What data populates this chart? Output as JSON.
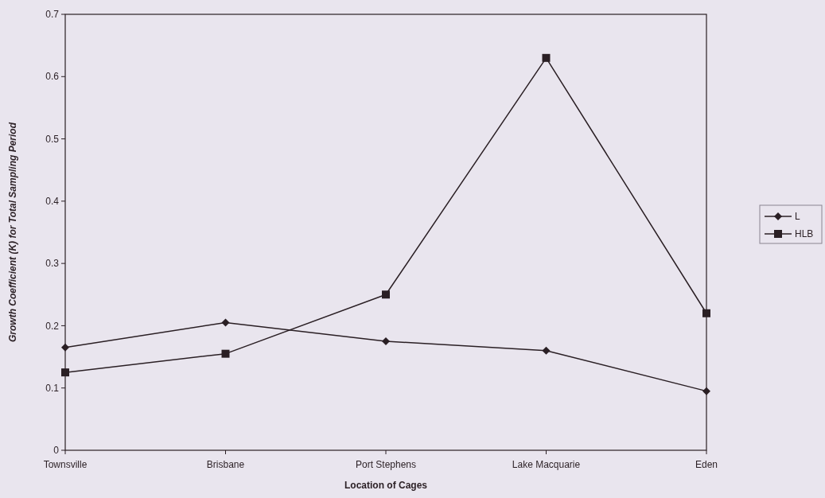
{
  "chart_data": {
    "type": "line",
    "xlabel": "Location of Cages",
    "ylabel": "Growth Coefficient (K) for Total Sampling Period",
    "categories": [
      "Townsville",
      "Brisbane",
      "Port Stephens",
      "Lake Macquarie",
      "Eden"
    ],
    "series": [
      {
        "name": "L",
        "color": "#2a1f24",
        "marker": "diamond",
        "values": [
          0.165,
          0.205,
          0.175,
          0.16,
          0.095
        ]
      },
      {
        "name": "HLB",
        "color": "#2a1f24",
        "marker": "square",
        "values": [
          0.125,
          0.155,
          0.25,
          0.63,
          0.22
        ]
      }
    ],
    "ylim": [
      0,
      0.7
    ],
    "yticks": [
      0,
      0.1,
      0.2,
      0.3,
      0.4,
      0.5,
      0.6,
      0.7
    ],
    "grid": false,
    "legend": "right",
    "line_style": "solid"
  }
}
